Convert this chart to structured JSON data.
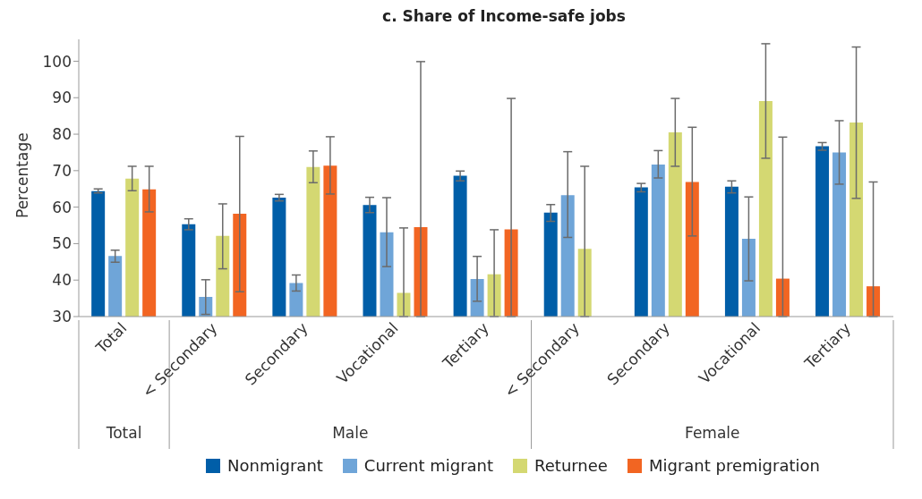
{
  "chart_data": {
    "type": "bar",
    "title": "c. Share of Income-safe jobs",
    "ylabel": "Percentage",
    "categories": [
      "Total",
      "< Secondary",
      "Secondary",
      "Vocational",
      "Tertiary",
      "< Secondary",
      "Secondary",
      "Vocational",
      "Tertiary"
    ],
    "annotations": [
      "Total",
      "Male",
      "Female"
    ],
    "series": [
      {
        "name": "Nonmigrant",
        "color": "#005ea8",
        "values": [
          64.4,
          55.3,
          62.6,
          60.6,
          68.6,
          58.5,
          65.4,
          65.6,
          76.7
        ],
        "errors": [
          [
            63.9,
            65.0
          ],
          [
            53.8,
            56.8
          ],
          [
            61.7,
            63.5
          ],
          [
            58.5,
            62.7
          ],
          [
            67.2,
            69.9
          ],
          [
            56.1,
            60.7
          ],
          [
            64.2,
            66.5
          ],
          [
            63.9,
            67.2
          ],
          [
            75.6,
            77.7
          ]
        ]
      },
      {
        "name": "Current migrant",
        "color": "#6fa5d8",
        "values": [
          46.6,
          35.4,
          39.2,
          53.1,
          40.3,
          63.3,
          71.7,
          51.3,
          75.0
        ],
        "errors": [
          [
            44.9,
            48.2
          ],
          [
            30.6,
            40.1
          ],
          [
            37.0,
            41.4
          ],
          [
            43.7,
            62.6
          ],
          [
            34.2,
            46.5
          ],
          [
            51.7,
            75.2
          ],
          [
            68.0,
            75.5
          ],
          [
            39.8,
            62.8
          ],
          [
            66.3,
            83.7
          ]
        ]
      },
      {
        "name": "Returnee",
        "color": "#d4d872",
        "values": [
          67.8,
          52.1,
          71.0,
          36.5,
          41.6,
          48.6,
          80.5,
          89.1,
          83.2
        ],
        "errors": [
          [
            64.5,
            71.2
          ],
          [
            43.1,
            60.9
          ],
          [
            66.7,
            75.4
          ],
          [
            30,
            54.3
          ],
          [
            30,
            53.8
          ],
          [
            30,
            71.2
          ],
          [
            71.2,
            89.8
          ],
          [
            73.4,
            104.8
          ],
          [
            62.4,
            103.9
          ]
        ]
      },
      {
        "name": "Migrant premigration",
        "color": "#f26522",
        "values": [
          64.9,
          58.2,
          71.4,
          54.5,
          53.9,
          null,
          66.9,
          40.4,
          38.3
        ],
        "errors": [
          [
            58.7,
            71.2
          ],
          [
            36.8,
            79.4
          ],
          [
            63.6,
            79.3
          ],
          [
            30,
            99.9
          ],
          [
            30,
            89.8
          ],
          null,
          [
            52.1,
            81.9
          ],
          [
            30,
            79.2
          ],
          [
            30,
            66.9
          ]
        ]
      }
    ],
    "ylim": [
      30,
      106
    ],
    "yticks": [
      30,
      40,
      50,
      60,
      70,
      80,
      90,
      100
    ],
    "grid": false,
    "legend": "bottom"
  }
}
